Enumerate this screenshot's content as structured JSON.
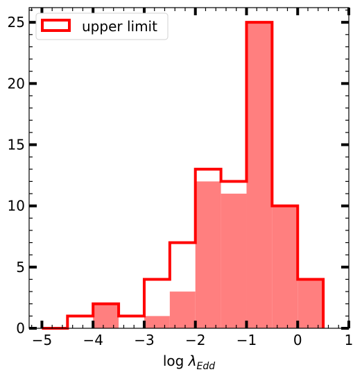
{
  "chart_data": {
    "type": "bar",
    "xlabel_prefix": "log ",
    "xlabel_symbol": "λ",
    "xlabel_subscript": "Edd",
    "xlim": [
      -5.25,
      1.0
    ],
    "ylim": [
      0,
      26.2
    ],
    "xticks": [
      -5,
      -4,
      -3,
      -2,
      -1,
      0,
      1
    ],
    "xtick_labels": [
      "−5",
      "−4",
      "−3",
      "−2",
      "−1",
      "0",
      "1"
    ],
    "yticks": [
      0,
      5,
      10,
      15,
      20,
      25
    ],
    "ytick_labels": [
      "0",
      "5",
      "10",
      "15",
      "20",
      "25"
    ],
    "bin_edges": [
      -5.0,
      -4.5,
      -4.0,
      -3.5,
      -3.0,
      -2.5,
      -2.0,
      -1.5,
      -1.0,
      -0.5,
      0.0,
      0.5
    ],
    "series": [
      {
        "name": "",
        "style": "filled",
        "values": [
          0,
          0,
          2,
          0,
          1,
          3,
          12,
          11,
          25,
          10,
          4
        ]
      },
      {
        "name": "upper limit",
        "style": "step-outline",
        "values": [
          0,
          1,
          2,
          1,
          4,
          7,
          13,
          12,
          25,
          10,
          4
        ]
      }
    ],
    "legend": {
      "position": "top-left",
      "label": "upper limit"
    },
    "colors": {
      "fill": "#ff7f7f",
      "outline": "#ff0000",
      "axis": "#000000"
    },
    "grid": false
  }
}
